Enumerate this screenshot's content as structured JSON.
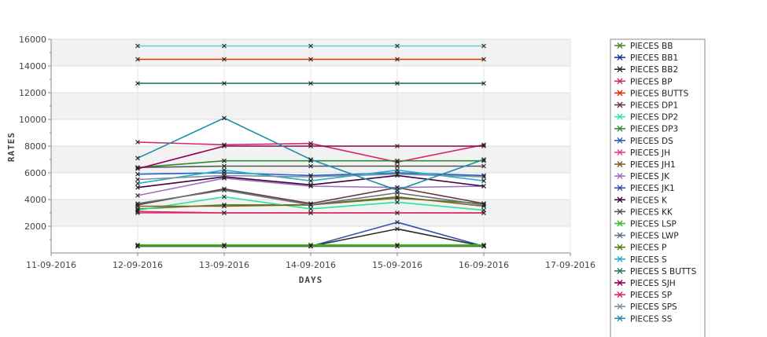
{
  "chart_data": {
    "type": "line",
    "xlabel": "DAYS",
    "ylabel": "RATES",
    "x_ticks": [
      "11-09-2016",
      "12-09-2016",
      "13-09-2016",
      "14-09-2016",
      "15-09-2016",
      "16-09-2016",
      "17-09-2016"
    ],
    "x": [
      "12-09-2016",
      "13-09-2016",
      "14-09-2016",
      "15-09-2016",
      "16-09-2016"
    ],
    "ylim": [
      0,
      16000
    ],
    "y_ticks": [
      2000,
      4000,
      6000,
      8000,
      10000,
      12000,
      14000,
      16000
    ],
    "grid": true,
    "legend_position": "right",
    "marker": "x",
    "series": [
      {
        "name": "PIECES BB",
        "color": "#4c8a2c",
        "values": [
          3300,
          3600,
          3600,
          4100,
          3700
        ]
      },
      {
        "name": "PIECES BB1",
        "color": "#1b2fa0",
        "values": [
          500,
          500,
          500,
          500,
          500
        ]
      },
      {
        "name": "PIECES BB2",
        "color": "#2a2a2a",
        "values": [
          500,
          500,
          500,
          1800,
          500
        ]
      },
      {
        "name": "PIECES BP",
        "color": "#d4286a",
        "values": [
          8300,
          8100,
          8200,
          6800,
          8100
        ]
      },
      {
        "name": "PIECES BUTTS",
        "color": "#e03000",
        "values": [
          14500,
          14500,
          14500,
          14500,
          14500
        ]
      },
      {
        "name": "PIECES DP1",
        "color": "#6a3a3a",
        "values": [
          3600,
          4800,
          3700,
          4900,
          3700
        ]
      },
      {
        "name": "PIECES DP2",
        "color": "#30e0a0",
        "values": [
          3200,
          4200,
          3300,
          3800,
          3200
        ]
      },
      {
        "name": "PIECES DP3",
        "color": "#2e8b2e",
        "values": [
          6400,
          6900,
          6900,
          6900,
          6900
        ]
      },
      {
        "name": "PIECES DS",
        "color": "#2060c0",
        "values": [
          5900,
          6000,
          5800,
          6000,
          5800
        ]
      },
      {
        "name": "PIECES JH",
        "color": "#e04080",
        "values": [
          3000,
          3000,
          3000,
          3000,
          3000
        ]
      },
      {
        "name": "PIECES JH1",
        "color": "#806020",
        "values": [
          3500,
          3500,
          3600,
          4200,
          3500
        ]
      },
      {
        "name": "PIECES JK",
        "color": "#a070c0",
        "values": [
          4300,
          5600,
          5000,
          4900,
          5000
        ]
      },
      {
        "name": "PIECES JK1",
        "color": "#3050b0",
        "values": [
          500,
          500,
          500,
          2300,
          500
        ]
      },
      {
        "name": "PIECES K",
        "color": "#400040",
        "values": [
          4900,
          5700,
          5100,
          5800,
          5000
        ]
      },
      {
        "name": "PIECES KK",
        "color": "#555555",
        "values": [
          6400,
          6500,
          6500,
          6500,
          6500
        ]
      },
      {
        "name": "PIECES LSP",
        "color": "#30c030",
        "values": [
          600,
          600,
          600,
          600,
          600
        ]
      },
      {
        "name": "PIECES LWP",
        "color": "#607080",
        "values": [
          3700,
          4700,
          3600,
          4500,
          3600
        ]
      },
      {
        "name": "PIECES P",
        "color": "#508000",
        "values": [
          500,
          500,
          500,
          500,
          500
        ]
      },
      {
        "name": "PIECES S",
        "color": "#20b0d0",
        "values": [
          5200,
          6200,
          5400,
          6200,
          5400
        ]
      },
      {
        "name": "PIECES S BUTTS",
        "color": "#208050",
        "values": [
          12700,
          12700,
          12700,
          12700,
          12700
        ]
      },
      {
        "name": "PIECES SJH",
        "color": "#900050",
        "values": [
          6300,
          8000,
          8000,
          8000,
          8000
        ]
      },
      {
        "name": "PIECES SP",
        "color": "#e02060",
        "values": [
          3100,
          3000,
          3000,
          3000,
          3000
        ]
      },
      {
        "name": "PIECES SPS",
        "color": "#8090a0",
        "values": [
          5500,
          5800,
          5700,
          5900,
          5700
        ]
      },
      {
        "name": "PIECES SS",
        "color": "#1890a8",
        "values": [
          7100,
          10100,
          7000,
          4700,
          7000
        ]
      },
      {
        "name": "",
        "color": "#60c8d8",
        "values": [
          15500,
          15500,
          15500,
          15500,
          15500
        ]
      }
    ]
  }
}
